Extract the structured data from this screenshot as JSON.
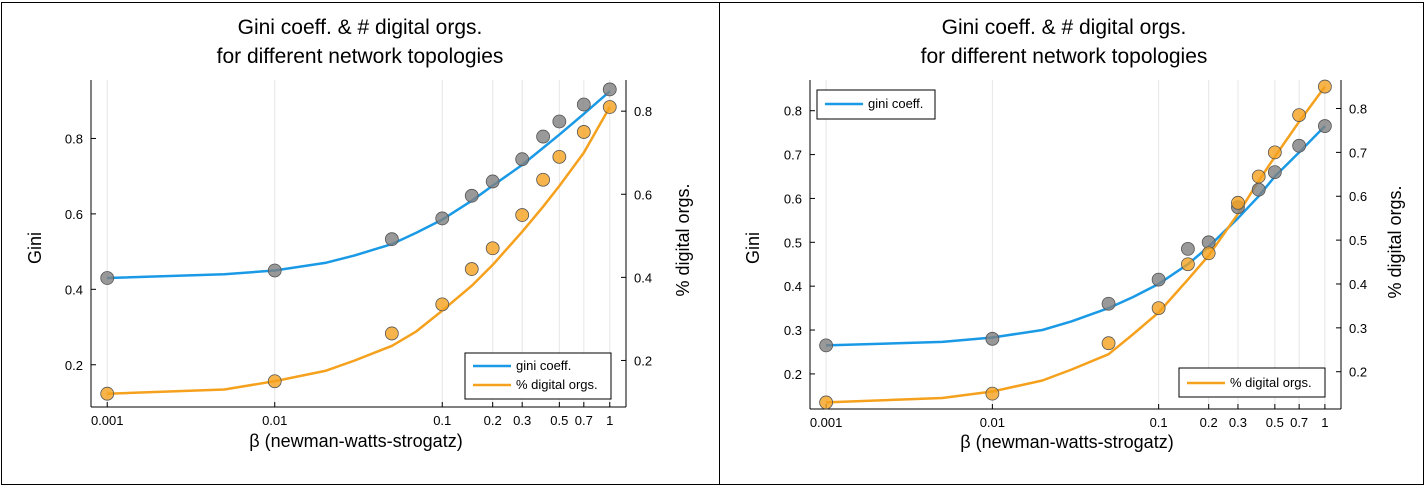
{
  "panels": [
    {
      "title_lines": [
        "Gini coeff. & # digital orgs.",
        "for different network topologies"
      ],
      "xlabel": "β (newman-watts-strogatz)",
      "ylabel_left": "Gini",
      "ylabel_right": "% digital orgs.",
      "legend_position": "bottom-right",
      "legend_items": [
        {
          "label": "gini coeff.",
          "color": "#1a9ae6"
        },
        {
          "label": "% digital orgs.",
          "color": "#f5a11d"
        }
      ]
    },
    {
      "title_lines": [
        "Gini coeff. & # digital orgs.",
        "for different network topologies"
      ],
      "xlabel": "β (newman-watts-strogatz)",
      "ylabel_left": "Gini",
      "ylabel_right": "% digital orgs.",
      "legend_top_left": {
        "label": "gini coeff.",
        "color": "#1a9ae6"
      },
      "legend_bottom_right": {
        "label": "% digital orgs.",
        "color": "#f5a11d"
      }
    }
  ],
  "chart_data": [
    {
      "type": "line",
      "x_scale": "log",
      "x_ticks": [
        0.001,
        0.01,
        0.1,
        0.2,
        0.3,
        0.5,
        0.7,
        1
      ],
      "x_tick_labels": [
        "0.001",
        "0.01",
        "0.1",
        "0.2",
        "0.3",
        "0.5",
        "0.7",
        "1"
      ],
      "xlim": [
        0.0008,
        1.25
      ],
      "y_left_ticks": [
        0.2,
        0.4,
        0.6,
        0.8
      ],
      "y_left_tick_labels": [
        "0.2",
        "0.4",
        "0.6",
        "0.8"
      ],
      "y_left_lim": [
        0.088,
        0.955
      ],
      "y_right_ticks": [
        0.2,
        0.4,
        0.6,
        0.8
      ],
      "y_right_tick_labels": [
        "0.2",
        "0.4",
        "0.6",
        "0.8"
      ],
      "y_right_lim": [
        0.088,
        0.875
      ],
      "grid": "x",
      "series": [
        {
          "name": "gini coeff.",
          "axis": "left",
          "color": "#1a9ae6",
          "marker_color": "#808080",
          "x": [
            0.001,
            0.01,
            0.05,
            0.1,
            0.15,
            0.2,
            0.3,
            0.4,
            0.5,
            0.7,
            1
          ],
          "y": [
            0.43,
            0.45,
            0.533,
            0.588,
            0.648,
            0.686,
            0.745,
            0.805,
            0.845,
            0.89,
            0.93
          ],
          "curve": [
            [
              0.001,
              0.43
            ],
            [
              0.005,
              0.44
            ],
            [
              0.01,
              0.45
            ],
            [
              0.02,
              0.47
            ],
            [
              0.03,
              0.49
            ],
            [
              0.05,
              0.52
            ],
            [
              0.07,
              0.55
            ],
            [
              0.1,
              0.585
            ],
            [
              0.15,
              0.635
            ],
            [
              0.2,
              0.675
            ],
            [
              0.3,
              0.73
            ],
            [
              0.4,
              0.775
            ],
            [
              0.5,
              0.81
            ],
            [
              0.7,
              0.865
            ],
            [
              1,
              0.925
            ]
          ]
        },
        {
          "name": "% digital orgs.",
          "axis": "right",
          "color": "#f5a11d",
          "marker_color": "#f5a11d",
          "x": [
            0.001,
            0.01,
            0.05,
            0.1,
            0.15,
            0.2,
            0.3,
            0.4,
            0.5,
            0.7,
            1
          ],
          "y": [
            0.12,
            0.15,
            0.265,
            0.335,
            0.42,
            0.47,
            0.55,
            0.635,
            0.69,
            0.75,
            0.81
          ],
          "curve": [
            [
              0.001,
              0.12
            ],
            [
              0.005,
              0.13
            ],
            [
              0.01,
              0.15
            ],
            [
              0.02,
              0.175
            ],
            [
              0.03,
              0.2
            ],
            [
              0.05,
              0.235
            ],
            [
              0.07,
              0.27
            ],
            [
              0.1,
              0.32
            ],
            [
              0.15,
              0.38
            ],
            [
              0.2,
              0.43
            ],
            [
              0.3,
              0.51
            ],
            [
              0.4,
              0.57
            ],
            [
              0.5,
              0.62
            ],
            [
              0.7,
              0.7
            ],
            [
              1,
              0.81
            ]
          ]
        }
      ]
    },
    {
      "type": "line",
      "x_scale": "log",
      "x_ticks": [
        0.001,
        0.01,
        0.1,
        0.2,
        0.3,
        0.5,
        0.7,
        1
      ],
      "x_tick_labels": [
        "0.001",
        "0.01",
        "0.1",
        "0.2",
        "0.3",
        "0.5",
        "0.7",
        "1"
      ],
      "xlim": [
        0.0008,
        1.25
      ],
      "y_left_ticks": [
        0.2,
        0.3,
        0.4,
        0.5,
        0.6,
        0.7,
        0.8
      ],
      "y_left_tick_labels": [
        "0.2",
        "0.3",
        "0.4",
        "0.5",
        "0.6",
        "0.7",
        "0.8"
      ],
      "y_left_lim": [
        0.12,
        0.87
      ],
      "y_right_ticks": [
        0.2,
        0.3,
        0.4,
        0.5,
        0.6,
        0.7,
        0.8
      ],
      "y_right_tick_labels": [
        "0.2",
        "0.3",
        "0.4",
        "0.5",
        "0.6",
        "0.7",
        "0.8"
      ],
      "y_right_lim": [
        0.115,
        0.865
      ],
      "grid": "x",
      "series": [
        {
          "name": "gini coeff.",
          "axis": "left",
          "color": "#1a9ae6",
          "marker_color": "#808080",
          "x": [
            0.001,
            0.01,
            0.05,
            0.1,
            0.15,
            0.2,
            0.3,
            0.4,
            0.5,
            0.7,
            1
          ],
          "y": [
            0.265,
            0.28,
            0.36,
            0.415,
            0.485,
            0.5,
            0.58,
            0.62,
            0.66,
            0.72,
            0.765
          ],
          "curve": [
            [
              0.001,
              0.265
            ],
            [
              0.005,
              0.273
            ],
            [
              0.01,
              0.283
            ],
            [
              0.02,
              0.3
            ],
            [
              0.03,
              0.32
            ],
            [
              0.05,
              0.35
            ],
            [
              0.07,
              0.375
            ],
            [
              0.1,
              0.405
            ],
            [
              0.15,
              0.45
            ],
            [
              0.2,
              0.49
            ],
            [
              0.3,
              0.555
            ],
            [
              0.4,
              0.605
            ],
            [
              0.5,
              0.65
            ],
            [
              0.7,
              0.705
            ],
            [
              1,
              0.765
            ]
          ]
        },
        {
          "name": "% digital orgs.",
          "axis": "right",
          "color": "#f5a11d",
          "marker_color": "#f5a11d",
          "x": [
            0.001,
            0.01,
            0.05,
            0.1,
            0.15,
            0.2,
            0.3,
            0.4,
            0.5,
            0.7,
            1
          ],
          "y": [
            0.13,
            0.15,
            0.265,
            0.345,
            0.445,
            0.47,
            0.585,
            0.645,
            0.7,
            0.785,
            0.85
          ],
          "curve": [
            [
              0.001,
              0.13
            ],
            [
              0.005,
              0.14
            ],
            [
              0.01,
              0.155
            ],
            [
              0.02,
              0.18
            ],
            [
              0.03,
              0.205
            ],
            [
              0.05,
              0.24
            ],
            [
              0.07,
              0.285
            ],
            [
              0.1,
              0.335
            ],
            [
              0.15,
              0.41
            ],
            [
              0.2,
              0.465
            ],
            [
              0.3,
              0.56
            ],
            [
              0.4,
              0.635
            ],
            [
              0.5,
              0.69
            ],
            [
              0.7,
              0.77
            ],
            [
              1,
              0.85
            ]
          ]
        }
      ]
    }
  ]
}
